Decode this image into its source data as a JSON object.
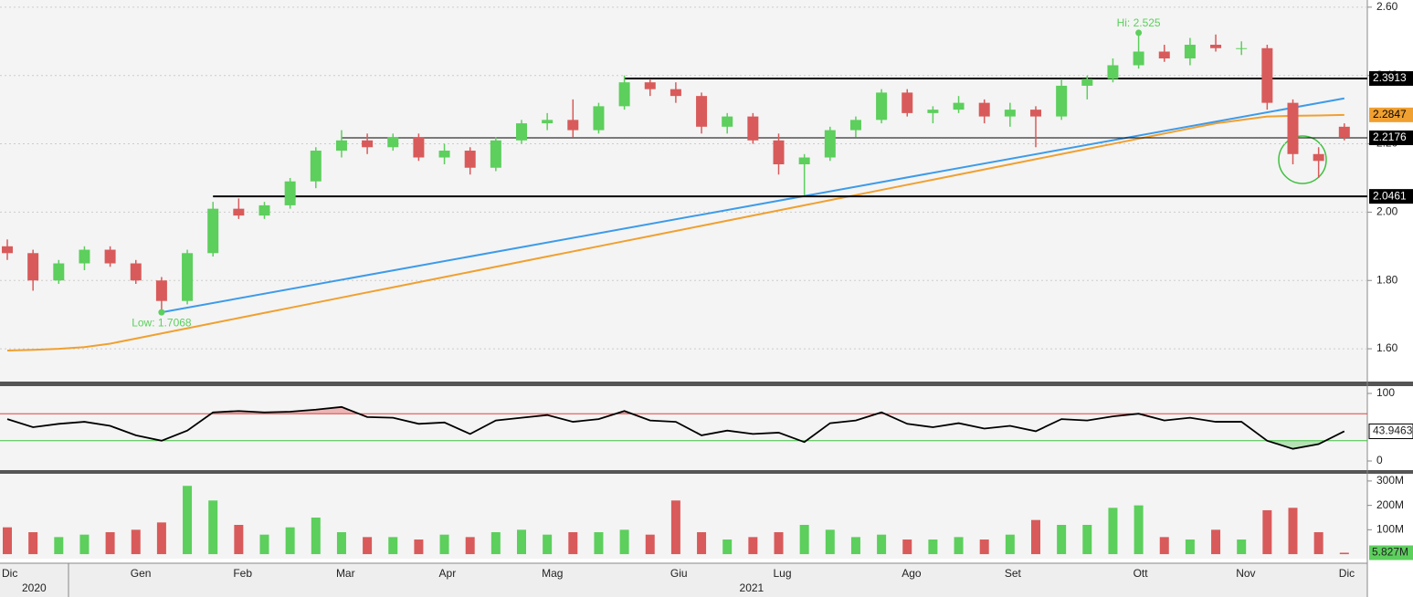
{
  "chart_data": [
    {
      "type": "candlestick",
      "categories": [
        "Dic",
        null,
        null,
        null,
        null,
        "Gen",
        null,
        null,
        null,
        "Feb",
        null,
        null,
        null,
        "Mar",
        null,
        null,
        null,
        "Apr",
        null,
        null,
        null,
        "Mag",
        null,
        null,
        null,
        null,
        "Giu",
        null,
        null,
        null,
        "Lug",
        null,
        null,
        null,
        null,
        "Ago",
        null,
        null,
        null,
        "Set",
        null,
        null,
        null,
        null,
        "Ott",
        null,
        null,
        null,
        "Nov",
        null,
        null,
        null,
        "Dic"
      ],
      "years": [
        "2020",
        "2021"
      ],
      "open": [
        1.9,
        1.88,
        1.8,
        1.85,
        1.89,
        1.85,
        1.8,
        1.74,
        1.88,
        2.01,
        1.99,
        2.02,
        2.09,
        2.18,
        2.21,
        2.19,
        2.22,
        2.16,
        2.18,
        2.13,
        2.21,
        2.26,
        2.27,
        2.24,
        2.31,
        2.38,
        2.36,
        2.34,
        2.25,
        2.28,
        2.21,
        2.14,
        2.16,
        2.24,
        2.27,
        2.35,
        2.29,
        2.3,
        2.32,
        2.28,
        2.3,
        2.28,
        2.37,
        2.39,
        2.43,
        2.47,
        2.45,
        2.49,
        2.48,
        2.48,
        2.32,
        2.17,
        2.25
      ],
      "high": [
        1.92,
        1.89,
        1.86,
        1.9,
        1.9,
        1.86,
        1.81,
        1.89,
        2.03,
        2.04,
        2.03,
        2.1,
        2.19,
        2.24,
        2.23,
        2.23,
        2.23,
        2.2,
        2.19,
        2.22,
        2.27,
        2.29,
        2.33,
        2.32,
        2.4,
        2.39,
        2.38,
        2.35,
        2.29,
        2.29,
        2.23,
        2.17,
        2.25,
        2.28,
        2.36,
        2.36,
        2.31,
        2.34,
        2.33,
        2.32,
        2.31,
        2.39,
        2.4,
        2.45,
        2.525,
        2.49,
        2.51,
        2.52,
        2.5,
        2.49,
        2.33,
        2.19,
        2.26
      ],
      "low": [
        1.86,
        1.77,
        1.79,
        1.83,
        1.84,
        1.79,
        1.7068,
        1.73,
        1.87,
        1.98,
        1.98,
        2.01,
        2.07,
        2.16,
        2.17,
        2.18,
        2.15,
        2.14,
        2.11,
        2.12,
        2.2,
        2.24,
        2.22,
        2.23,
        2.3,
        2.34,
        2.32,
        2.23,
        2.23,
        2.2,
        2.11,
        2.05,
        2.15,
        2.22,
        2.26,
        2.28,
        2.26,
        2.29,
        2.26,
        2.25,
        2.19,
        2.27,
        2.33,
        2.38,
        2.42,
        2.44,
        2.43,
        2.47,
        2.46,
        2.3,
        2.14,
        2.1,
        2.21
      ],
      "close": [
        1.88,
        1.8,
        1.85,
        1.89,
        1.85,
        1.8,
        1.74,
        1.88,
        2.01,
        1.99,
        2.02,
        2.09,
        2.18,
        2.21,
        2.19,
        2.22,
        2.16,
        2.18,
        2.13,
        2.21,
        2.26,
        2.27,
        2.24,
        2.31,
        2.38,
        2.36,
        2.34,
        2.25,
        2.28,
        2.21,
        2.14,
        2.16,
        2.24,
        2.27,
        2.35,
        2.29,
        2.3,
        2.32,
        2.28,
        2.3,
        2.28,
        2.37,
        2.39,
        2.43,
        2.47,
        2.45,
        2.49,
        2.48,
        2.48,
        2.32,
        2.17,
        2.15,
        2.2176
      ],
      "up_color": "#5ccf5c",
      "down_color": "#d95a5a",
      "ylim": [
        1.504,
        2.621
      ],
      "yticks": [
        {
          "value": 1.6,
          "label": "1.60"
        },
        {
          "value": 1.8,
          "label": "1.80"
        },
        {
          "value": 2.0,
          "label": "2.00"
        },
        {
          "value": 2.2,
          "label": "2.20"
        },
        {
          "value": 2.4,
          "label": "2.40"
        },
        {
          "value": 2.6,
          "label": "2.60"
        }
      ],
      "grid": true,
      "moving_average": {
        "color": "#f0a030",
        "values": [
          1.595,
          1.597,
          1.6,
          1.605,
          1.615,
          1.63,
          1.645,
          1.66,
          1.675,
          1.69,
          1.705,
          1.72,
          1.735,
          1.75,
          1.765,
          1.78,
          1.795,
          1.81,
          1.825,
          1.84,
          1.855,
          1.87,
          1.885,
          1.9,
          1.915,
          1.93,
          1.945,
          1.96,
          1.975,
          1.99,
          2.005,
          2.02,
          2.035,
          2.05,
          2.065,
          2.08,
          2.095,
          2.11,
          2.125,
          2.14,
          2.155,
          2.17,
          2.185,
          2.2,
          2.215,
          2.23,
          2.245,
          2.26,
          2.27,
          2.28,
          2.282,
          2.283,
          2.2847
        ]
      },
      "trend_line": {
        "color": "#3d9be9",
        "from": 6,
        "to": 52,
        "values": [
          1.7068,
          2.333
        ]
      },
      "levels": [
        {
          "value": 2.3913,
          "from": 24
        },
        {
          "value": 2.2176,
          "from": 13
        },
        {
          "value": 2.0461,
          "from": 8
        }
      ],
      "annotations": [
        {
          "text": "Hi: 2.525",
          "category": 44,
          "value": 2.525
        },
        {
          "text": "Low: 1.7068",
          "category": 6,
          "value": 1.7068
        }
      ]
    },
    {
      "type": "line",
      "values": [
        62,
        50,
        55,
        58,
        52,
        38,
        30,
        45,
        72,
        74,
        72,
        73,
        76,
        80,
        65,
        64,
        55,
        57,
        40,
        60,
        64,
        68,
        58,
        62,
        74,
        60,
        58,
        38,
        45,
        40,
        42,
        28,
        56,
        60,
        72,
        55,
        50,
        56,
        48,
        52,
        44,
        62,
        60,
        66,
        70,
        60,
        64,
        58,
        58,
        30,
        18,
        25,
        43.9463
      ],
      "color": "#000000",
      "ylim": [
        -13.5,
        110.8
      ],
      "yticks": [
        0,
        100
      ],
      "upper": 70,
      "lower": 30,
      "upper_color": "#e04040",
      "lower_color": "#40c040"
    },
    {
      "type": "bar",
      "values": [
        110,
        90,
        70,
        80,
        90,
        100,
        130,
        280,
        220,
        120,
        80,
        110,
        150,
        90,
        70,
        70,
        60,
        80,
        70,
        90,
        100,
        80,
        90,
        90,
        100,
        80,
        220,
        90,
        60,
        70,
        90,
        120,
        100,
        70,
        80,
        60,
        60,
        70,
        60,
        80,
        140,
        120,
        120,
        190,
        200,
        70,
        60,
        100,
        60,
        180,
        190,
        90,
        5.827
      ],
      "last_value_label": "5.827M",
      "ylim": [
        -18.5,
        329.6
      ],
      "yticks": [
        {
          "value": 100,
          "label": "100M"
        },
        {
          "value": 200,
          "label": "200M"
        },
        {
          "value": 300,
          "label": "300M"
        }
      ]
    }
  ]
}
